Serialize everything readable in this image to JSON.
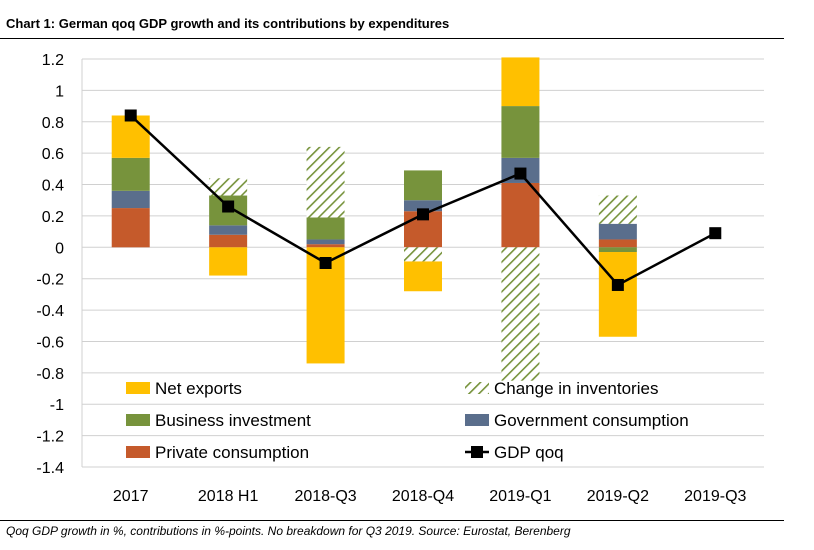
{
  "title": "Chart 1: German qoq GDP growth and its contributions by expenditures",
  "footnote": "Qoq GDP growth in %, contributions in %-points. No breakdown for Q3 2019. Source: Eurostat, Berenberg",
  "chart_data": {
    "type": "bar",
    "stacked": true,
    "categories": [
      "2017",
      "2018 H1",
      "2018-Q3",
      "2018-Q4",
      "2019-Q1",
      "2019-Q2",
      "2019-Q3"
    ],
    "ylim": [
      -1.4,
      1.2
    ],
    "yticks": [
      "1.2",
      "1",
      "0.8",
      "0.6",
      "0.4",
      "0.2",
      "0",
      "-0.2",
      "-0.4",
      "-0.6",
      "-0.8",
      "-1",
      "-1.2",
      "-1.4"
    ],
    "ytick_values": [
      1.2,
      1.0,
      0.8,
      0.6,
      0.4,
      0.2,
      0,
      -0.2,
      -0.4,
      -0.6,
      -0.8,
      -1.0,
      -1.2,
      -1.4
    ],
    "grid": true,
    "series": [
      {
        "key": "private",
        "name": "Private consumption",
        "color": "#C55A2B",
        "values": [
          0.25,
          0.08,
          0.02,
          0.23,
          0.41,
          0.05,
          null
        ]
      },
      {
        "key": "government",
        "name": "Government consumption",
        "color": "#5A6E8C",
        "values": [
          0.11,
          0.06,
          0.03,
          0.07,
          0.16,
          0.1,
          null
        ]
      },
      {
        "key": "business",
        "name": "Business investment",
        "color": "#77933C",
        "values": [
          0.21,
          0.19,
          0.14,
          0.19,
          0.33,
          -0.03,
          null
        ]
      },
      {
        "key": "inventories",
        "name": "Change in inventories",
        "color": "#77933C",
        "pattern": "hatch",
        "values": [
          0.0,
          0.11,
          0.45,
          -0.09,
          -0.85,
          0.18,
          null
        ]
      },
      {
        "key": "netexports",
        "name": "Net exports",
        "color": "#FFC000",
        "values": [
          0.27,
          -0.18,
          -0.74,
          -0.19,
          0.31,
          -0.54,
          null
        ]
      }
    ],
    "line": {
      "name": "GDP qoq",
      "color": "#000000",
      "values": [
        0.84,
        0.26,
        -0.1,
        0.21,
        0.47,
        -0.24,
        0.09
      ]
    },
    "legend_order": [
      "netexports",
      "inventories",
      "business",
      "government",
      "private",
      "gdp"
    ],
    "legend_position": "bottom-inside"
  }
}
